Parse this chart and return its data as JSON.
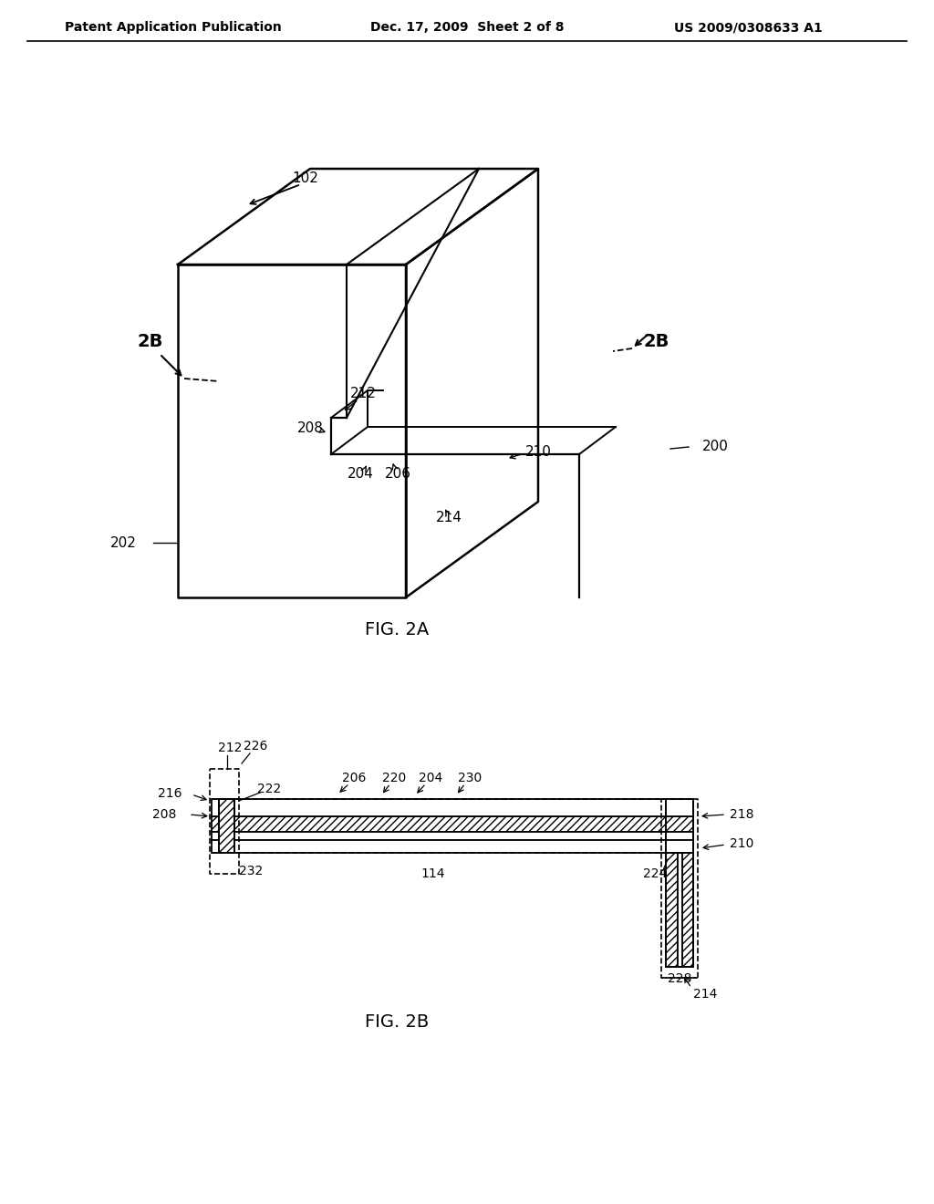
{
  "bg_color": "#ffffff",
  "header_left": "Patent Application Publication",
  "header_mid": "Dec. 17, 2009  Sheet 2 of 8",
  "header_right": "US 2009/0308633 A1"
}
